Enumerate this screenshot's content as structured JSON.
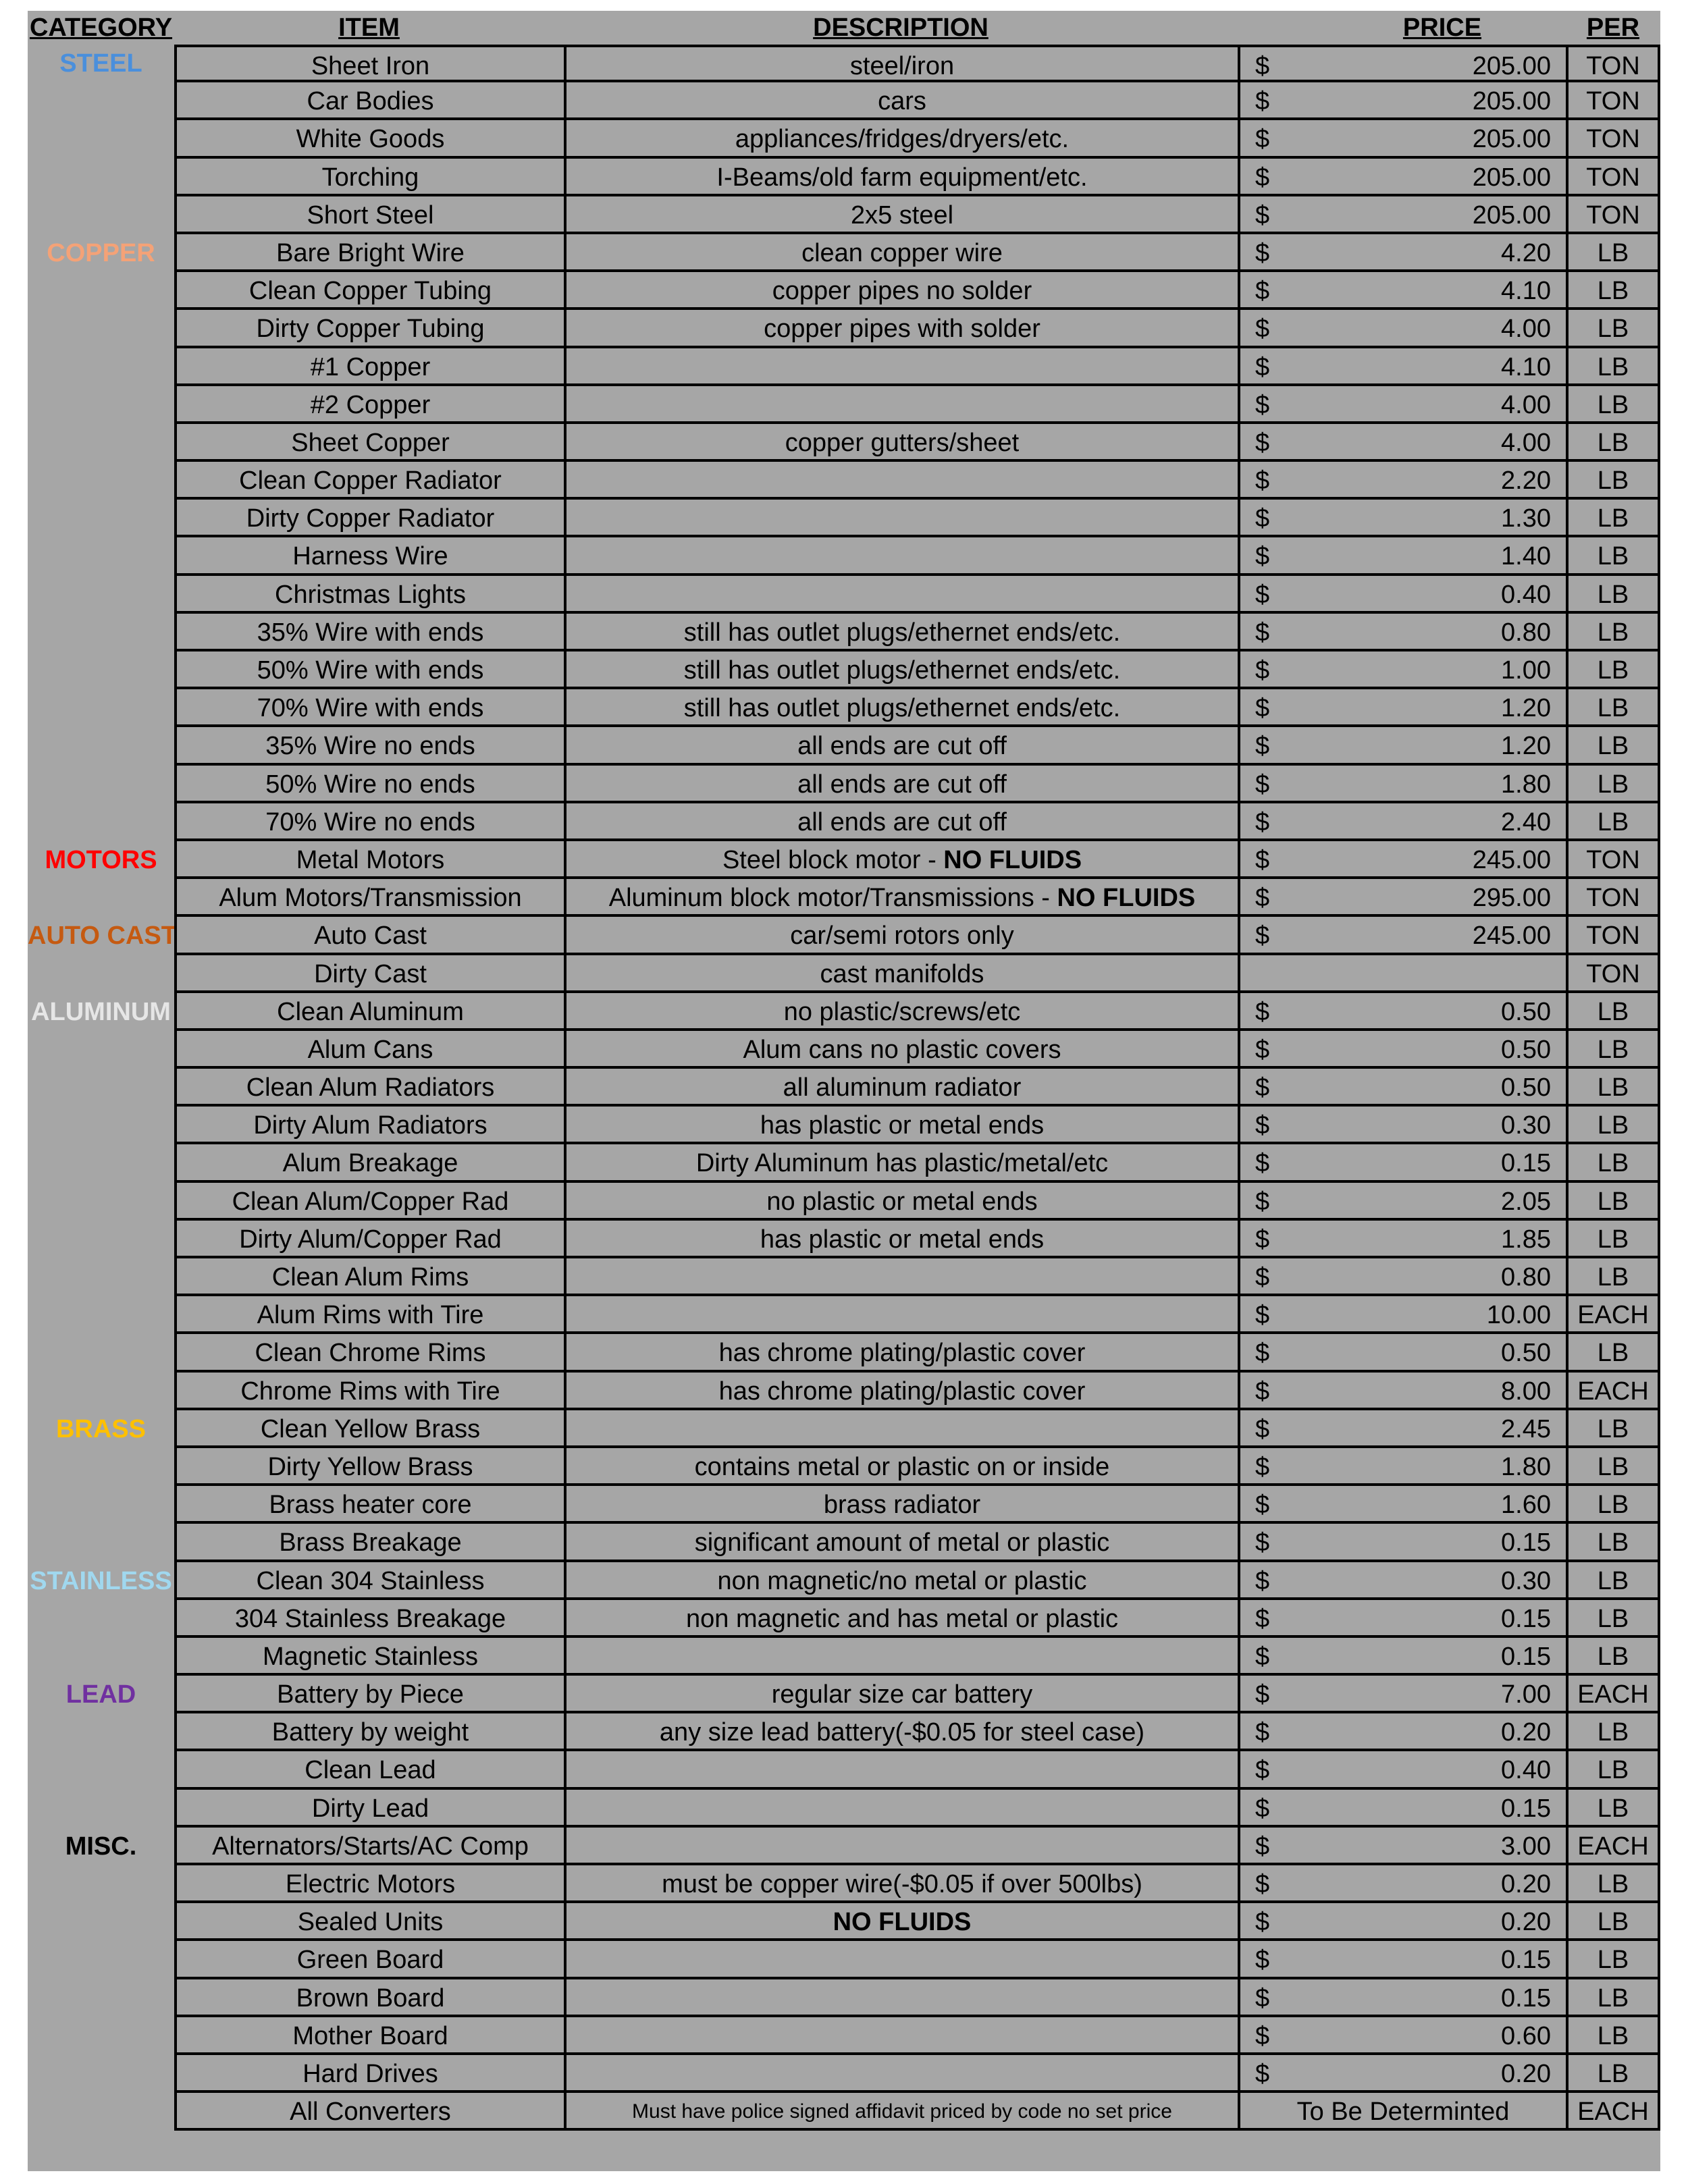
{
  "headers": {
    "category": "CATEGORY",
    "item": "ITEM",
    "description": "DESCRIPTION",
    "price": "PRICE",
    "per": "PER"
  },
  "category_colors": {
    "STEEL": "#4a8fdc",
    "COPPER": "#f4a277",
    "MOTORS": "#ff0000",
    "AUTO CAST": "#c55a11",
    "ALUMINUM": "#e6e6e6",
    "BRASS": "#ffc000",
    "STAINLESS": "#a0d8ef",
    "LEAD": "#7030a0",
    "MISC.": "#000000"
  },
  "rows": [
    {
      "category": "STEEL",
      "item": "Sheet Iron",
      "desc": "steel/iron",
      "currency": "$",
      "price": "205.00",
      "per": "TON"
    },
    {
      "item": "Car Bodies",
      "desc": "cars",
      "currency": "$",
      "price": "205.00",
      "per": "TON"
    },
    {
      "item": "White Goods",
      "desc": "appliances/fridges/dryers/etc.",
      "currency": "$",
      "price": "205.00",
      "per": "TON"
    },
    {
      "item": "Torching",
      "desc": "I-Beams/old farm equipment/etc.",
      "currency": "$",
      "price": "205.00",
      "per": "TON"
    },
    {
      "item": "Short Steel",
      "desc": "2x5 steel",
      "currency": "$",
      "price": "205.00",
      "per": "TON"
    },
    {
      "category": "COPPER",
      "item": "Bare Bright Wire",
      "desc": "clean copper wire",
      "currency": "$",
      "price": "4.20",
      "per": "LB"
    },
    {
      "item": "Clean Copper Tubing",
      "desc": "copper pipes no solder",
      "currency": "$",
      "price": "4.10",
      "per": "LB"
    },
    {
      "item": "Dirty Copper Tubing",
      "desc": "copper pipes with solder",
      "currency": "$",
      "price": "4.00",
      "per": "LB"
    },
    {
      "item": "#1 Copper",
      "desc": "",
      "currency": "$",
      "price": "4.10",
      "per": "LB"
    },
    {
      "item": "#2 Copper",
      "desc": "",
      "currency": "$",
      "price": "4.00",
      "per": "LB"
    },
    {
      "item": "Sheet Copper",
      "desc": "copper gutters/sheet",
      "currency": "$",
      "price": "4.00",
      "per": "LB"
    },
    {
      "item": "Clean Copper Radiator",
      "desc": "",
      "currency": "$",
      "price": "2.20",
      "per": "LB"
    },
    {
      "item": "Dirty Copper Radiator",
      "desc": "",
      "currency": "$",
      "price": "1.30",
      "per": "LB"
    },
    {
      "item": "Harness Wire",
      "desc": "",
      "currency": "$",
      "price": "1.40",
      "per": "LB"
    },
    {
      "item": "Christmas Lights",
      "desc": "",
      "currency": "$",
      "price": "0.40",
      "per": "LB"
    },
    {
      "item": "35% Wire with ends",
      "desc": "still has outlet plugs/ethernet ends/etc.",
      "currency": "$",
      "price": "0.80",
      "per": "LB"
    },
    {
      "item": "50% Wire with ends",
      "desc": "still has outlet plugs/ethernet ends/etc.",
      "currency": "$",
      "price": "1.00",
      "per": "LB"
    },
    {
      "item": "70% Wire with ends",
      "desc": "still has outlet plugs/ethernet ends/etc.",
      "currency": "$",
      "price": "1.20",
      "per": "LB"
    },
    {
      "item": "35% Wire no ends",
      "desc": "all ends are cut off",
      "currency": "$",
      "price": "1.20",
      "per": "LB"
    },
    {
      "item": "50% Wire no ends",
      "desc": "all ends are cut off",
      "currency": "$",
      "price": "1.80",
      "per": "LB"
    },
    {
      "item": "70% Wire no ends",
      "desc": "all ends are cut off",
      "currency": "$",
      "price": "2.40",
      "per": "LB"
    },
    {
      "category": "MOTORS",
      "item": "Metal Motors",
      "desc": "Steel block motor - ",
      "desc_bold": "NO FLUIDS",
      "currency": "$",
      "price": "245.00",
      "per": "TON"
    },
    {
      "item": "Alum Motors/Transmission",
      "desc": "Aluminum block motor/Transmissions - ",
      "desc_bold": "NO FLUIDS",
      "currency": "$",
      "price": "295.00",
      "per": "TON"
    },
    {
      "category": "AUTO CAST",
      "item": "Auto Cast",
      "desc": "car/semi rotors only",
      "currency": "$",
      "price": "245.00",
      "per": "TON"
    },
    {
      "item": "Dirty Cast",
      "desc": "cast manifolds",
      "currency": "",
      "price": "",
      "per": "TON"
    },
    {
      "category": "ALUMINUM",
      "item": "Clean Aluminum",
      "desc": "no plastic/screws/etc",
      "currency": "$",
      "price": "0.50",
      "per": "LB"
    },
    {
      "item": "Alum Cans",
      "desc": "Alum cans no plastic covers",
      "currency": "$",
      "price": "0.50",
      "per": "LB"
    },
    {
      "item": "Clean Alum Radiators",
      "desc": "all aluminum radiator",
      "currency": "$",
      "price": "0.50",
      "per": "LB"
    },
    {
      "item": "Dirty Alum Radiators",
      "desc": "has plastic or metal ends",
      "currency": "$",
      "price": "0.30",
      "per": "LB"
    },
    {
      "item": "Alum Breakage",
      "desc": "Dirty Aluminum has plastic/metal/etc",
      "currency": "$",
      "price": "0.15",
      "per": "LB"
    },
    {
      "item": "Clean Alum/Copper Rad",
      "desc": "no plastic or metal ends",
      "currency": "$",
      "price": "2.05",
      "per": "LB"
    },
    {
      "item": "Dirty Alum/Copper Rad",
      "desc": "has plastic or metal ends",
      "currency": "$",
      "price": "1.85",
      "per": "LB"
    },
    {
      "item": "Clean Alum Rims",
      "desc": "",
      "currency": "$",
      "price": "0.80",
      "per": "LB"
    },
    {
      "item": "Alum Rims with Tire",
      "desc": "",
      "currency": "$",
      "price": "10.00",
      "per": "EACH"
    },
    {
      "item": "Clean Chrome Rims",
      "desc": "has chrome plating/plastic cover",
      "currency": "$",
      "price": "0.50",
      "per": "LB"
    },
    {
      "item": "Chrome Rims with Tire",
      "desc": "has chrome plating/plastic cover",
      "currency": "$",
      "price": "8.00",
      "per": "EACH"
    },
    {
      "category": "BRASS",
      "item": "Clean Yellow Brass",
      "desc": "",
      "currency": "$",
      "price": "2.45",
      "per": "LB"
    },
    {
      "item": "Dirty Yellow Brass",
      "desc": "contains metal or plastic on or inside",
      "currency": "$",
      "price": "1.80",
      "per": "LB"
    },
    {
      "item": "Brass heater core",
      "desc": "brass radiator",
      "currency": "$",
      "price": "1.60",
      "per": "LB"
    },
    {
      "item": "Brass Breakage",
      "desc": "significant amount of metal or plastic",
      "currency": "$",
      "price": "0.15",
      "per": "LB"
    },
    {
      "category": "STAINLESS",
      "item": "Clean 304 Stainless",
      "desc": "non magnetic/no metal or plastic",
      "currency": "$",
      "price": "0.30",
      "per": "LB"
    },
    {
      "item": "304 Stainless Breakage",
      "desc": "non magnetic and has metal or plastic",
      "currency": "$",
      "price": "0.15",
      "per": "LB"
    },
    {
      "item": "Magnetic Stainless",
      "desc": "",
      "currency": "$",
      "price": "0.15",
      "per": "LB"
    },
    {
      "category": "LEAD",
      "item": "Battery by Piece",
      "desc": "regular size car battery",
      "currency": "$",
      "price": "7.00",
      "per": "EACH"
    },
    {
      "item": "Battery by weight",
      "desc": "any size lead battery(-$0.05 for steel case)",
      "currency": "$",
      "price": "0.20",
      "per": "LB"
    },
    {
      "item": "Clean Lead",
      "desc": "",
      "currency": "$",
      "price": "0.40",
      "per": "LB"
    },
    {
      "item": "Dirty Lead",
      "desc": "",
      "currency": "$",
      "price": "0.15",
      "per": "LB"
    },
    {
      "category": "MISC.",
      "item": "Alternators/Starts/AC Comp",
      "desc": "",
      "currency": "$",
      "price": "3.00",
      "per": "EACH"
    },
    {
      "item": "Electric Motors",
      "desc": "must be copper wire(-$0.05 if over 500lbs)",
      "currency": "$",
      "price": "0.20",
      "per": "LB"
    },
    {
      "item": "Sealed Units",
      "desc": "",
      "desc_bold": "NO FLUIDS",
      "currency": "$",
      "price": "0.20",
      "per": "LB"
    },
    {
      "item": "Green Board",
      "desc": "",
      "currency": "$",
      "price": "0.15",
      "per": "LB"
    },
    {
      "item": "Brown Board",
      "desc": "",
      "currency": "$",
      "price": "0.15",
      "per": "LB"
    },
    {
      "item": "Mother Board",
      "desc": "",
      "currency": "$",
      "price": "0.60",
      "per": "LB"
    },
    {
      "item": "Hard Drives",
      "desc": "",
      "currency": "$",
      "price": "0.20",
      "per": "LB"
    },
    {
      "item": "All Converters",
      "desc": "Must have police signed affidavit priced by code no set price",
      "desc_small": true,
      "currency": "",
      "price": "",
      "price_text": "To Be Determinted",
      "per": "EACH"
    }
  ]
}
